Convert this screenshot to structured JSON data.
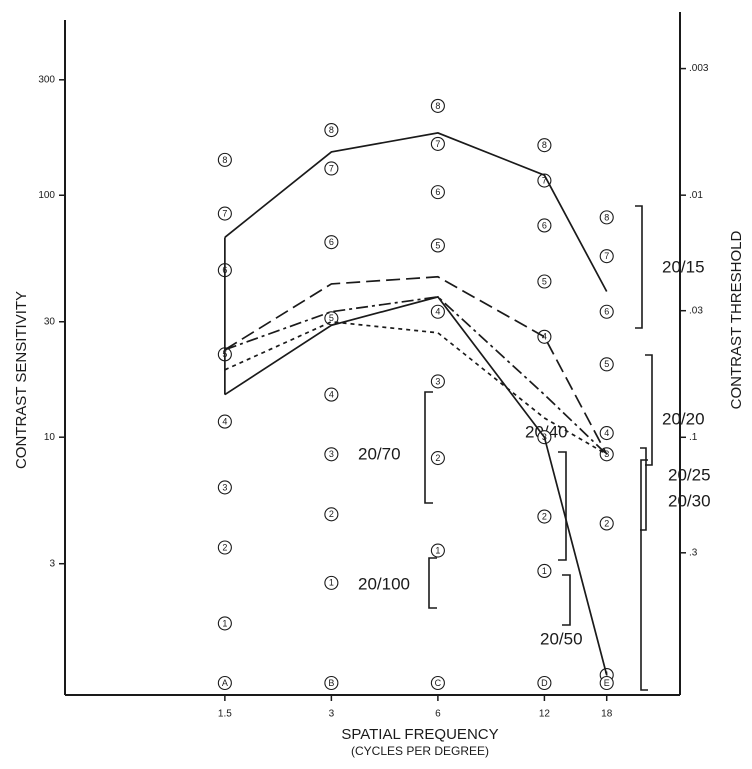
{
  "chart_data": {
    "type": "line",
    "x_label": "SPATIAL FREQUENCY",
    "x_sublabel": "(CYCLES PER DEGREE)",
    "y_label": "CONTRAST SENSITIVITY",
    "y2_label": "CONTRAST THRESHOLD",
    "xscale": "log",
    "yscale": "log",
    "xlim": [
      0.53,
      29
    ],
    "xticks": [
      1.5,
      3,
      6,
      12,
      18
    ],
    "ylim": [
      0.86,
      530
    ],
    "yticks": [
      300,
      100,
      30,
      10,
      3
    ],
    "y2lim": [
      1.16,
      0.00189
    ],
    "y2ticks": [
      {
        "value": 0.003,
        "label": ".003"
      },
      {
        "value": 0.01,
        "label": ".01"
      },
      {
        "value": 0.03,
        "label": ".03"
      },
      {
        "value": 0.1,
        "label": ".1"
      },
      {
        "value": 0.3,
        "label": ".3"
      }
    ],
    "x": [
      1.5,
      3,
      6,
      12,
      18
    ],
    "series": [
      {
        "color": "#1a1a1a",
        "style": "solid",
        "values": [
          67,
          151,
          181,
          121,
          40
        ]
      },
      {
        "color": "#1a1a1a",
        "style": "dashed",
        "values": [
          23,
          43,
          46,
          26,
          8.5
        ]
      },
      {
        "color": "#1a1a1a",
        "style": "dashdot",
        "values": [
          23,
          33,
          38,
          15,
          8.5
        ]
      },
      {
        "color": "#1a1a1a",
        "style": "dotted",
        "values": [
          19,
          30,
          27,
          12,
          8.5
        ]
      },
      {
        "color": "#1a1a1a",
        "style": "solid",
        "values": [
          15,
          29,
          38,
          10,
          1.04
        ]
      }
    ],
    "patches": {
      "labels": [
        "1",
        "2",
        "3",
        "4",
        "5",
        "6",
        "7",
        "8"
      ],
      "columns": [
        {
          "label": "A",
          "x": 1.5,
          "values": [
            1.7,
            3.5,
            6.2,
            11.6,
            22,
            49,
            84,
            140
          ]
        },
        {
          "label": "B",
          "x": 3,
          "values": [
            2.5,
            4.8,
            8.5,
            15,
            31,
            64,
            129,
            186
          ]
        },
        {
          "label": "C",
          "x": 6,
          "values": [
            3.4,
            8.2,
            17,
            33,
            62,
            103,
            163,
            234
          ]
        },
        {
          "label": "D",
          "x": 12,
          "values": [
            2.8,
            4.7,
            10,
            26,
            44,
            75,
            115,
            161
          ]
        },
        {
          "label": "E",
          "x": 18,
          "values": [
            1.04,
            4.4,
            8.5,
            10.4,
            20,
            33,
            56,
            81
          ]
        }
      ]
    },
    "annotations": [
      "20/15",
      "20/20",
      "20/25",
      "20/30",
      "20/40",
      "20/50",
      "20/70",
      "20/100"
    ]
  }
}
